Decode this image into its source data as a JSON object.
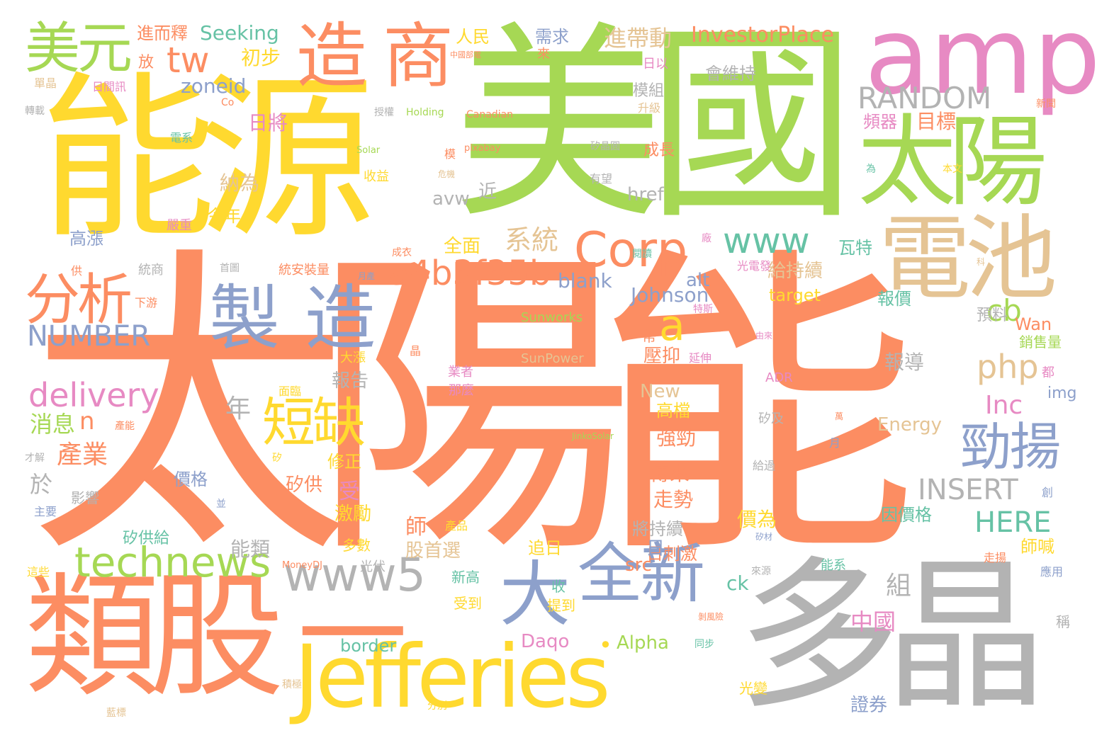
{
  "palette": {
    "orange": "#FC8D62",
    "green": "#A6D854",
    "yellow": "#FFD92F",
    "pink": "#E78AC3",
    "blue": "#8DA0CB",
    "teal": "#66C2A5",
    "tan": "#E5C494",
    "gray": "#B3B3B3"
  },
  "words": [
    {
      "id": "w001",
      "text": "太陽能",
      "color": "orange"
    },
    {
      "id": "w002",
      "text": "美國",
      "color": "green"
    },
    {
      "id": "w003",
      "text": "能源",
      "color": "yellow"
    },
    {
      "id": "w004",
      "text": "多晶",
      "color": "gray"
    },
    {
      "id": "w005",
      "text": "類股",
      "color": "orange"
    },
    {
      "id": "w006",
      "text": "Jefferies",
      "color": "yellow"
    },
    {
      "id": "w007",
      "text": "amp",
      "color": "pink"
    },
    {
      "id": "w008",
      "text": "太陽",
      "color": "green"
    },
    {
      "id": "w009",
      "text": "電池",
      "color": "tan"
    },
    {
      "id": "w010",
      "text": "一",
      "color": "orange"
    },
    {
      "id": "w011",
      "text": "造",
      "color": "orange"
    },
    {
      "id": "w012",
      "text": "商",
      "color": "orange"
    },
    {
      "id": "w013",
      "text": "美元",
      "color": "green"
    },
    {
      "id": "w014",
      "text": "製",
      "color": "blue"
    },
    {
      "id": "w015",
      "text": "造",
      "color": "blue"
    },
    {
      "id": "w016",
      "text": "分析",
      "color": "orange"
    },
    {
      "id": "w017",
      "text": "全新",
      "color": "blue"
    },
    {
      "id": "w018",
      "text": "大",
      "color": "blue"
    },
    {
      "id": "w019",
      "text": "Corp",
      "color": "orange"
    },
    {
      "id": "w020",
      "text": "短缺",
      "color": "yellow"
    },
    {
      "id": "w021",
      "text": "勁揚",
      "color": "blue"
    },
    {
      "id": "w022",
      "text": "technews",
      "color": "green"
    },
    {
      "id": "w023",
      "text": "www5",
      "color": "gray"
    },
    {
      "id": "w024",
      "text": "a4b3f35b",
      "color": "orange"
    },
    {
      "id": "w025",
      "text": "www",
      "color": "teal"
    },
    {
      "id": "w026",
      "text": "RANDOM",
      "color": "gray"
    },
    {
      "id": "w027",
      "text": "tw",
      "color": "orange"
    },
    {
      "id": "w028",
      "text": "a",
      "color": "yellow"
    },
    {
      "id": "w029",
      "text": "delivery",
      "color": "pink"
    },
    {
      "id": "w030",
      "text": "NUMBER",
      "color": "blue"
    },
    {
      "id": "w031",
      "text": "INSERT",
      "color": "gray"
    },
    {
      "id": "w032",
      "text": "HERE",
      "color": "teal"
    },
    {
      "id": "w033",
      "text": "php",
      "color": "tan"
    },
    {
      "id": "w034",
      "text": "cb",
      "color": "green"
    },
    {
      "id": "w035",
      "text": "Inc",
      "color": "pink"
    },
    {
      "id": "w036",
      "text": "系統",
      "color": "tan"
    },
    {
      "id": "w037",
      "text": "產業",
      "color": "orange"
    },
    {
      "id": "w038",
      "text": "n",
      "color": "orange"
    },
    {
      "id": "w039",
      "text": "消息",
      "color": "green"
    },
    {
      "id": "w040",
      "text": "InvestorPlace",
      "color": "orange"
    },
    {
      "id": "w041",
      "text": "Seeking",
      "color": "teal"
    },
    {
      "id": "w042",
      "text": "進帶動",
      "color": "tan"
    },
    {
      "id": "w043",
      "text": "zoneid",
      "color": "blue"
    },
    {
      "id": "w044",
      "text": "Johnson",
      "color": "blue"
    },
    {
      "id": "w045",
      "text": "blank",
      "color": "blue"
    },
    {
      "id": "w046",
      "text": "target",
      "color": "yellow"
    },
    {
      "id": "w047",
      "text": "Alpha",
      "color": "green"
    },
    {
      "id": "w048",
      "text": "Daqo",
      "color": "pink"
    },
    {
      "id": "w049",
      "text": "border",
      "color": "teal"
    },
    {
      "id": "w050",
      "text": "中國",
      "color": "pink"
    },
    {
      "id": "w051",
      "text": "Energy",
      "color": "tan"
    },
    {
      "id": "w052",
      "text": "New",
      "color": "tan"
    },
    {
      "id": "w053",
      "text": "Wan",
      "color": "orange"
    },
    {
      "id": "w054",
      "text": "img",
      "color": "blue"
    },
    {
      "id": "w055",
      "text": "href",
      "color": "gray"
    },
    {
      "id": "w056",
      "text": "avw",
      "color": "gray"
    },
    {
      "id": "w057",
      "text": "alt",
      "color": "blue"
    },
    {
      "id": "w058",
      "text": "ck",
      "color": "teal"
    },
    {
      "id": "w059",
      "text": "src",
      "color": "orange"
    },
    {
      "id": "w060",
      "text": "年",
      "color": "gray"
    },
    {
      "id": "w061",
      "text": "組",
      "color": "gray"
    },
    {
      "id": "w062",
      "text": "給持續",
      "color": "tan"
    },
    {
      "id": "w063",
      "text": "全面",
      "color": "yellow"
    },
    {
      "id": "w064",
      "text": "納為",
      "color": "tan"
    },
    {
      "id": "w065",
      "text": "日將",
      "color": "pink"
    },
    {
      "id": "w066",
      "text": "目標",
      "color": "orange"
    },
    {
      "id": "w067",
      "text": "報導",
      "color": "gray"
    },
    {
      "id": "w068",
      "text": "報告",
      "color": "gray"
    },
    {
      "id": "w069",
      "text": "壓抑",
      "color": "orange"
    },
    {
      "id": "w070",
      "text": "高檔",
      "color": "yellow"
    },
    {
      "id": "w071",
      "text": "強勁",
      "color": "orange"
    },
    {
      "id": "w072",
      "text": "傳來",
      "color": "orange"
    },
    {
      "id": "w073",
      "text": "走勢",
      "color": "orange"
    },
    {
      "id": "w074",
      "text": "將持續",
      "color": "gray"
    },
    {
      "id": "w075",
      "text": "價為",
      "color": "yellow"
    },
    {
      "id": "w076",
      "text": "師喊",
      "color": "yellow"
    },
    {
      "id": "w077",
      "text": "因價格",
      "color": "teal"
    },
    {
      "id": "w078",
      "text": "能類",
      "color": "gray"
    },
    {
      "id": "w079",
      "text": "股首選",
      "color": "tan"
    },
    {
      "id": "w080",
      "text": "矽供",
      "color": "orange"
    },
    {
      "id": "w081",
      "text": "修正",
      "color": "yellow"
    },
    {
      "id": "w082",
      "text": "激勵",
      "color": "yellow"
    },
    {
      "id": "w083",
      "text": "日刺激",
      "color": "orange"
    },
    {
      "id": "w084",
      "text": "價格",
      "color": "blue"
    },
    {
      "id": "w085",
      "text": "初步",
      "color": "yellow"
    },
    {
      "id": "w086",
      "text": "進而釋",
      "color": "orange"
    },
    {
      "id": "w087",
      "text": "人民",
      "color": "yellow"
    },
    {
      "id": "w088",
      "text": "需求",
      "color": "blue"
    },
    {
      "id": "w089",
      "text": "模組",
      "color": "gray"
    },
    {
      "id": "w090",
      "text": "會維持",
      "color": "gray"
    },
    {
      "id": "w091",
      "text": "成長",
      "color": "orange"
    },
    {
      "id": "w092",
      "text": "頻器",
      "color": "pink"
    },
    {
      "id": "w093",
      "text": "今年",
      "color": "yellow"
    },
    {
      "id": "w094",
      "text": "高漲",
      "color": "blue"
    },
    {
      "id": "w095",
      "text": "瓦特",
      "color": "teal"
    },
    {
      "id": "w096",
      "text": "報價",
      "color": "teal"
    },
    {
      "id": "w097",
      "text": "預料",
      "color": "gray"
    },
    {
      "id": "w098",
      "text": "銷售量",
      "color": "green"
    },
    {
      "id": "w099",
      "text": "影響",
      "color": "gray"
    },
    {
      "id": "w100",
      "text": "矽供給",
      "color": "teal"
    },
    {
      "id": "w101",
      "text": "證券",
      "color": "blue"
    },
    {
      "id": "w102",
      "text": "光變",
      "color": "yellow"
    },
    {
      "id": "w103",
      "text": "受到",
      "color": "yellow"
    },
    {
      "id": "w104",
      "text": "追日",
      "color": "yellow"
    },
    {
      "id": "w105",
      "text": "收",
      "color": "teal"
    },
    {
      "id": "w106",
      "text": "提到",
      "color": "yellow"
    },
    {
      "id": "w107",
      "text": "新高",
      "color": "teal"
    },
    {
      "id": "w108",
      "text": "多數",
      "color": "yellow"
    },
    {
      "id": "w109",
      "text": "光伏",
      "color": "gray"
    },
    {
      "id": "w110",
      "text": "於",
      "color": "gray"
    },
    {
      "id": "w111",
      "text": "受",
      "color": "pink"
    },
    {
      "id": "w112",
      "text": "師",
      "color": "orange"
    },
    {
      "id": "w113",
      "text": "日",
      "color": "blue"
    },
    {
      "id": "w114",
      "text": "放",
      "color": "orange"
    },
    {
      "id": "w115",
      "text": "近",
      "color": "gray"
    },
    {
      "id": "w116",
      "text": "•",
      "color": "yellow"
    },
    {
      "id": "w117",
      "text": "Sunworks",
      "color": "green"
    },
    {
      "id": "w118",
      "text": "SunPower",
      "color": "tan"
    },
    {
      "id": "w119",
      "text": "Holding",
      "color": "green"
    },
    {
      "id": "w120",
      "text": "Canadian",
      "color": "orange"
    },
    {
      "id": "w121",
      "text": "Solar",
      "color": "green"
    },
    {
      "id": "w122",
      "text": "pixabay",
      "color": "orange"
    },
    {
      "id": "w123",
      "text": "JinkoSolar",
      "color": "green"
    },
    {
      "id": "w124",
      "text": "MoneyDJ",
      "color": "orange"
    },
    {
      "id": "w125",
      "text": "ADR",
      "color": "pink"
    },
    {
      "id": "w126",
      "text": "Co",
      "color": "orange"
    },
    {
      "id": "w127",
      "text": "中國部電",
      "color": "orange"
    },
    {
      "id": "w128",
      "text": "來",
      "color": "orange"
    },
    {
      "id": "w129",
      "text": "日以",
      "color": "pink"
    },
    {
      "id": "w130",
      "text": "升級",
      "color": "tan"
    },
    {
      "id": "w131",
      "text": "新聞",
      "color": "orange"
    },
    {
      "id": "w132",
      "text": "日間訊",
      "color": "pink"
    },
    {
      "id": "w133",
      "text": "單晶",
      "color": "tan"
    },
    {
      "id": "w134",
      "text": "轉載",
      "color": "gray"
    },
    {
      "id": "w135",
      "text": "電系",
      "color": "teal"
    },
    {
      "id": "w136",
      "text": "授權",
      "color": "gray"
    },
    {
      "id": "w137",
      "text": "收益",
      "color": "yellow"
    },
    {
      "id": "w138",
      "text": "矽晶圓",
      "color": "gray"
    },
    {
      "id": "w139",
      "text": "有望",
      "color": "gray"
    },
    {
      "id": "w140",
      "text": "為",
      "color": "teal"
    },
    {
      "id": "w141",
      "text": "本文",
      "color": "yellow"
    },
    {
      "id": "w142",
      "text": "嚴重",
      "color": "pink"
    },
    {
      "id": "w143",
      "text": "統商",
      "color": "gray"
    },
    {
      "id": "w144",
      "text": "供",
      "color": "orange"
    },
    {
      "id": "w145",
      "text": "首圖",
      "color": "gray"
    },
    {
      "id": "w146",
      "text": "成衣",
      "color": "orange"
    },
    {
      "id": "w147",
      "text": "統安裝量",
      "color": "orange"
    },
    {
      "id": "w148",
      "text": "月產",
      "color": "blue"
    },
    {
      "id": "w149",
      "text": "光電發",
      "color": "pink"
    },
    {
      "id": "w150",
      "text": "閱讀",
      "color": "teal"
    },
    {
      "id": "w151",
      "text": "廠",
      "color": "pink"
    },
    {
      "id": "w152",
      "text": "下游",
      "color": "orange"
    },
    {
      "id": "w153",
      "text": "特斯",
      "color": "pink"
    },
    {
      "id": "w154",
      "text": "由來",
      "color": "pink"
    },
    {
      "id": "w155",
      "text": "幣",
      "color": "orange"
    },
    {
      "id": "w156",
      "text": "延伸",
      "color": "pink"
    },
    {
      "id": "w157",
      "text": "都",
      "color": "pink"
    },
    {
      "id": "w158",
      "text": "晶",
      "color": "orange"
    },
    {
      "id": "w159",
      "text": "大漲",
      "color": "yellow"
    },
    {
      "id": "w160",
      "text": "業者",
      "color": "pink"
    },
    {
      "id": "w161",
      "text": "那麼",
      "color": "pink"
    },
    {
      "id": "w162",
      "text": "面臨",
      "color": "yellow"
    },
    {
      "id": "w163",
      "text": "矽及",
      "color": "gray"
    },
    {
      "id": "w164",
      "text": "月",
      "color": "blue"
    },
    {
      "id": "w165",
      "text": "給過",
      "color": "gray"
    },
    {
      "id": "w166",
      "text": "才解",
      "color": "gray"
    },
    {
      "id": "w167",
      "text": "產能",
      "color": "orange"
    },
    {
      "id": "w168",
      "text": "矽",
      "color": "yellow"
    },
    {
      "id": "w169",
      "text": "主要",
      "color": "blue"
    },
    {
      "id": "w170",
      "text": "並",
      "color": "blue"
    },
    {
      "id": "w171",
      "text": "產品",
      "color": "yellow"
    },
    {
      "id": "w172",
      "text": "矽材",
      "color": "blue"
    },
    {
      "id": "w173",
      "text": "走揚",
      "color": "orange"
    },
    {
      "id": "w174",
      "text": "應用",
      "color": "blue"
    },
    {
      "id": "w175",
      "text": "這些",
      "color": "yellow"
    },
    {
      "id": "w176",
      "text": "能系",
      "color": "teal"
    },
    {
      "id": "w177",
      "text": "來源",
      "color": "gray"
    },
    {
      "id": "w178",
      "text": "稱",
      "color": "gray"
    },
    {
      "id": "w179",
      "text": "分別",
      "color": "yellow"
    },
    {
      "id": "w180",
      "text": "同步",
      "color": "teal"
    },
    {
      "id": "w181",
      "text": "積極",
      "color": "tan"
    },
    {
      "id": "w182",
      "text": "剝風險",
      "color": "orange"
    },
    {
      "id": "w183",
      "text": "藍標",
      "color": "tan"
    },
    {
      "id": "w184",
      "text": "危機",
      "color": "tan"
    },
    {
      "id": "w185",
      "text": "創",
      "color": "blue"
    },
    {
      "id": "w186",
      "text": "科",
      "color": "tan"
    },
    {
      "id": "w187",
      "text": "模",
      "color": "orange"
    },
    {
      "id": "w188",
      "text": "萬",
      "color": "orange"
    }
  ]
}
